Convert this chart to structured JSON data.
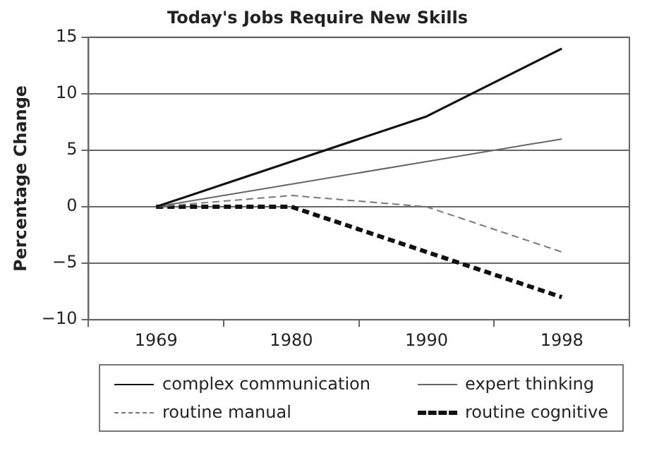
{
  "chart_data": {
    "type": "line",
    "title": "Today's Jobs Require New Skills",
    "ylabel": "Percentage Change",
    "categories": [
      "1969",
      "1980",
      "1990",
      "1998"
    ],
    "series": [
      {
        "name": "complex communication",
        "color": "#111111",
        "line_style": "solid",
        "values": [
          0,
          4,
          8,
          14
        ]
      },
      {
        "name": "expert thinking",
        "color": "#666666",
        "line_style": "solid",
        "values": [
          0,
          2,
          4,
          6
        ]
      },
      {
        "name": "routine manual",
        "color": "#777777",
        "line_style": "dashed",
        "values": [
          0,
          1,
          0,
          -4
        ]
      },
      {
        "name": "routine cognitive",
        "color": "#111111",
        "line_style": "dashed",
        "values": [
          0,
          0,
          -4,
          -8
        ]
      }
    ],
    "ylim": [
      -10,
      15
    ],
    "yticks": [
      -10,
      -5,
      0,
      5,
      10,
      15
    ],
    "grid": "y",
    "legend": "bottom",
    "marker": "none"
  }
}
